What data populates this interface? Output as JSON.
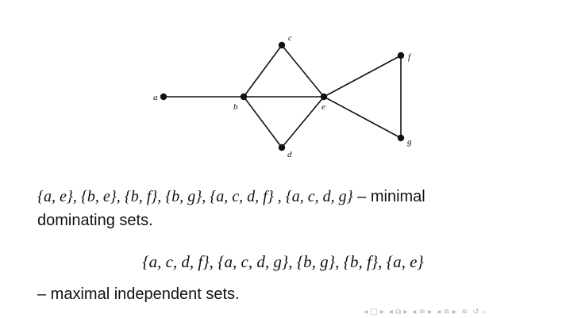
{
  "graph": {
    "vertices": [
      {
        "id": "a",
        "label": "a"
      },
      {
        "id": "b",
        "label": "b"
      },
      {
        "id": "c",
        "label": "c"
      },
      {
        "id": "d",
        "label": "d"
      },
      {
        "id": "e",
        "label": "e"
      },
      {
        "id": "f",
        "label": "f"
      },
      {
        "id": "g",
        "label": "g"
      }
    ],
    "edges": [
      [
        "a",
        "b"
      ],
      [
        "b",
        "c"
      ],
      [
        "b",
        "d"
      ],
      [
        "b",
        "e"
      ],
      [
        "c",
        "e"
      ],
      [
        "d",
        "e"
      ],
      [
        "e",
        "f"
      ],
      [
        "e",
        "g"
      ],
      [
        "f",
        "g"
      ]
    ]
  },
  "text": {
    "dominating_sets_math": "{a, e}, {b, e}, {b, f}, {b, g}, {a, c, d, f} , {a, c, d, g}",
    "dominating_sets_suffix": " – minimal",
    "dominating_sets_line2": "dominating sets.",
    "independent_sets_math": "{a, c, d, f}, {a, c, d, g}, {b, g}, {b, f}, {a, e}",
    "independent_sets_caption": "– maximal independent sets."
  },
  "nav": {
    "icons": [
      "◂ □ ▸",
      "◂ ⧉ ▸",
      "◂ ≡ ▸",
      "◂ ≡ ▸",
      "≡",
      "↺ ⌕"
    ]
  }
}
